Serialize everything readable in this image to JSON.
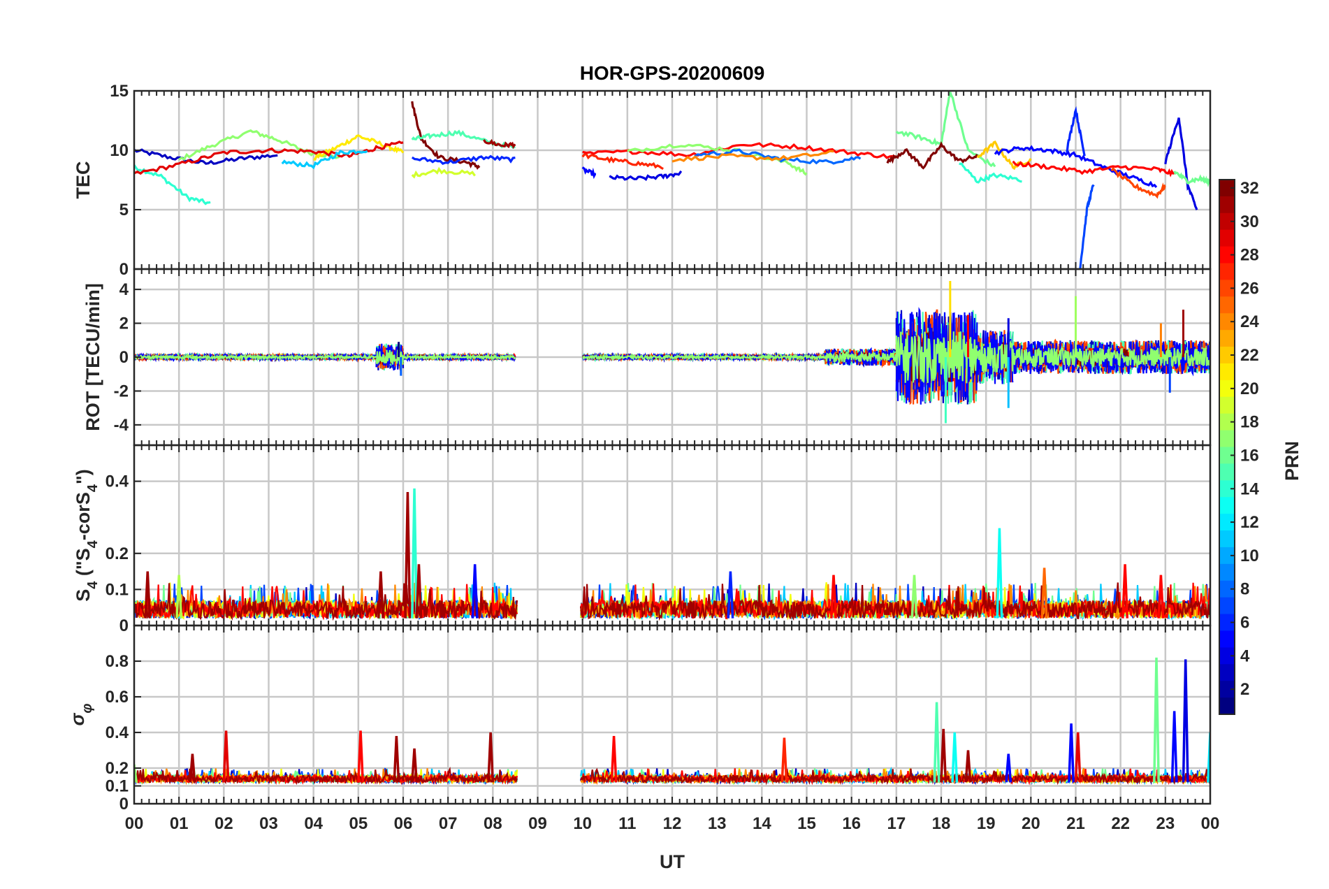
{
  "chart_data": {
    "type": "line",
    "title": "HOR-GPS-20200609",
    "xlabel": "UT",
    "x_ticks": [
      "00",
      "01",
      "02",
      "03",
      "04",
      "05",
      "06",
      "07",
      "08",
      "09",
      "10",
      "11",
      "12",
      "13",
      "14",
      "15",
      "16",
      "17",
      "18",
      "19",
      "20",
      "21",
      "22",
      "23",
      "00"
    ],
    "xlim": [
      0,
      24
    ],
    "data_gap_hours": [
      8.55,
      9.95
    ],
    "colorbar": {
      "label": "PRN",
      "ticks": [
        "2",
        "4",
        "6",
        "8",
        "10",
        "12",
        "14",
        "16",
        "18",
        "20",
        "22",
        "24",
        "26",
        "28",
        "30",
        "32"
      ],
      "range": [
        1,
        32
      ],
      "colormap": "jet"
    },
    "panels": [
      {
        "id": "tec",
        "ylabel": "TEC",
        "ylim": [
          0,
          15
        ],
        "y_ticks": [
          "0",
          "5",
          "10",
          "15"
        ],
        "y_values": [
          0,
          5,
          10,
          15
        ],
        "grid": true,
        "series": [
          {
            "prn": 3,
            "x": [
              0.0,
              0.8,
              1.6,
              2.4,
              3.2
            ],
            "y": [
              10.0,
              9.4,
              8.9,
              9.3,
              9.6
            ]
          },
          {
            "prn": 14,
            "x": [
              0.0,
              0.6,
              1.2,
              1.7
            ],
            "y": [
              8.6,
              7.8,
              6.0,
              5.5
            ]
          },
          {
            "prn": 17,
            "x": [
              1.0,
              1.8,
              2.6,
              3.2,
              3.9,
              4.6
            ],
            "y": [
              9.2,
              10.5,
              11.6,
              10.9,
              9.8,
              9.4
            ]
          },
          {
            "prn": 21,
            "x": [
              4.0,
              4.5,
              5.0,
              5.6,
              6.0
            ],
            "y": [
              9.3,
              10.2,
              11.2,
              10.4,
              9.8
            ]
          },
          {
            "prn": 29,
            "x": [
              0.0,
              1.0,
              2.0,
              3.0,
              4.0,
              4.8,
              5.4,
              6.0
            ],
            "y": [
              8.0,
              8.8,
              9.8,
              10.0,
              9.9,
              9.5,
              10.2,
              10.6
            ]
          },
          {
            "prn": 11,
            "x": [
              3.3,
              4.0,
              4.6,
              5.2
            ],
            "y": [
              9.0,
              8.7,
              9.8,
              10.0
            ]
          },
          {
            "prn": 32,
            "x": [
              6.2,
              6.4,
              6.8,
              7.4,
              7.7
            ],
            "y": [
              14.0,
              11.0,
              9.4,
              9.0,
              8.6
            ]
          },
          {
            "prn": 15,
            "x": [
              6.2,
              6.6,
              7.2,
              7.8,
              8.5
            ],
            "y": [
              10.9,
              11.2,
              11.5,
              10.8,
              10.2
            ]
          },
          {
            "prn": 19,
            "x": [
              6.2,
              6.8,
              7.6
            ],
            "y": [
              7.9,
              8.3,
              8.0
            ]
          },
          {
            "prn": 6,
            "x": [
              6.2,
              7.0,
              7.8,
              8.5
            ],
            "y": [
              9.3,
              9.0,
              9.4,
              9.2
            ]
          },
          {
            "prn": 31,
            "x": [
              7.8,
              8.2,
              8.5
            ],
            "y": [
              10.8,
              10.4,
              10.5
            ]
          },
          {
            "prn": 5,
            "x": [
              10.0,
              10.3
            ],
            "y": [
              8.4,
              7.9
            ]
          },
          {
            "prn": 4,
            "x": [
              10.6,
              11.2,
              11.8,
              12.2
            ],
            "y": [
              7.7,
              7.6,
              7.8,
              8.1
            ]
          },
          {
            "prn": 27,
            "x": [
              10.0,
              10.6,
              11.2,
              11.8
            ],
            "y": [
              9.6,
              9.2,
              8.9,
              8.6
            ]
          },
          {
            "prn": 28,
            "x": [
              10.0,
              11.2,
              12.4,
              13.6,
              14.8,
              16.0,
              17.0
            ],
            "y": [
              9.7,
              9.9,
              9.6,
              10.5,
              10.3,
              9.8,
              9.4
            ]
          },
          {
            "prn": 17,
            "x": [
              11.0,
              12.2,
              13.4,
              14.6,
              15.0
            ],
            "y": [
              9.9,
              10.5,
              10.0,
              8.9,
              8.0
            ]
          },
          {
            "prn": 8,
            "x": [
              12.5,
              13.5,
              14.5,
              15.5,
              16.2
            ],
            "y": [
              9.6,
              9.9,
              9.2,
              9.0,
              9.4
            ]
          },
          {
            "prn": 24,
            "x": [
              12.0,
              13.2,
              14.4,
              15.6
            ],
            "y": [
              9.2,
              9.5,
              9.3,
              9.8
            ]
          },
          {
            "prn": 16,
            "x": [
              17.0,
              17.6,
              18.0,
              18.2,
              18.6,
              19.2
            ],
            "y": [
              11.6,
              11.0,
              10.5,
              15.0,
              10.0,
              8.6
            ]
          },
          {
            "prn": 14,
            "x": [
              18.4,
              18.8,
              19.2,
              19.8
            ],
            "y": [
              9.0,
              7.4,
              7.9,
              7.5
            ]
          },
          {
            "prn": 32,
            "x": [
              16.8,
              17.2,
              17.6,
              18.0,
              18.4,
              18.8
            ],
            "y": [
              9.0,
              10.0,
              8.6,
              10.4,
              9.1,
              9.5
            ]
          },
          {
            "prn": 22,
            "x": [
              18.8,
              19.2,
              19.6,
              20.0
            ],
            "y": [
              9.4,
              10.6,
              8.6,
              9.2
            ]
          },
          {
            "prn": 5,
            "x": [
              19.2,
              19.8,
              20.4,
              21.0,
              21.6,
              22.2,
              22.8
            ],
            "y": [
              9.8,
              10.2,
              10.0,
              9.6,
              8.6,
              7.8,
              7.0
            ]
          },
          {
            "prn": 6,
            "x": [
              20.8,
              21.0,
              21.2
            ],
            "y": [
              10.0,
              13.4,
              9.5
            ]
          },
          {
            "prn": 7,
            "x": [
              21.1,
              21.25,
              21.4
            ],
            "y": [
              0.2,
              5.0,
              7.2
            ]
          },
          {
            "prn": 26,
            "x": [
              21.8,
              22.3,
              22.8,
              23.0
            ],
            "y": [
              8.4,
              7.0,
              6.2,
              7.0
            ]
          },
          {
            "prn": 28,
            "x": [
              19.6,
              20.4,
              21.2,
              22.0,
              22.8,
              23.2
            ],
            "y": [
              8.9,
              8.6,
              8.2,
              8.6,
              8.4,
              8.0
            ]
          },
          {
            "prn": 4,
            "x": [
              23.0,
              23.3,
              23.5,
              23.7
            ],
            "y": [
              9.0,
              12.8,
              7.0,
              5.0
            ]
          },
          {
            "prn": 16,
            "x": [
              23.2,
              23.5,
              23.8,
              24.0
            ],
            "y": [
              8.2,
              7.4,
              7.6,
              7.3
            ]
          }
        ]
      },
      {
        "id": "rot",
        "ylabel": "ROT [TECU/min]",
        "ylim": [
          -5.2,
          5.2
        ],
        "y_ticks": [
          "-4",
          "-2",
          "0",
          "2",
          "4"
        ],
        "y_values": [
          -4,
          -2,
          0,
          2,
          4
        ],
        "grid": true,
        "segments": [
          {
            "t0": 0.0,
            "t1": 5.4,
            "amp": 0.15
          },
          {
            "t0": 5.4,
            "t1": 6.0,
            "amp": 0.8
          },
          {
            "t0": 6.0,
            "t1": 8.5,
            "amp": 0.15
          },
          {
            "t0": 10.0,
            "t1": 15.4,
            "amp": 0.15
          },
          {
            "t0": 15.4,
            "t1": 17.0,
            "amp": 0.5
          },
          {
            "t0": 17.0,
            "t1": 18.8,
            "amp": 2.8
          },
          {
            "t0": 18.8,
            "t1": 19.6,
            "amp": 1.6
          },
          {
            "t0": 19.6,
            "t1": 24.0,
            "amp": 1.0
          }
        ],
        "peaks": [
          {
            "x": 5.9,
            "y": 0.9
          },
          {
            "x": 5.95,
            "y": -1.1
          },
          {
            "x": 18.1,
            "y": -3.9
          },
          {
            "x": 18.2,
            "y": 4.5
          },
          {
            "x": 18.6,
            "y": 2.5
          },
          {
            "x": 19.5,
            "y": 2.3
          },
          {
            "x": 19.5,
            "y": -3.0
          },
          {
            "x": 21.0,
            "y": 3.6
          },
          {
            "x": 22.9,
            "y": 2.0
          },
          {
            "x": 23.4,
            "y": 2.8
          },
          {
            "x": 23.1,
            "y": -2.1
          }
        ]
      },
      {
        "id": "s4",
        "ylabel": "S4 (\"S4-corS4\")",
        "ylim": [
          0,
          0.5
        ],
        "y_ticks": [
          "0",
          "0.1",
          "0.2",
          "0.4"
        ],
        "y_values": [
          0,
          0.1,
          0.2,
          0.4
        ],
        "grid": true,
        "peaks": [
          {
            "x": 0.3,
            "y": 0.15,
            "prn": 31
          },
          {
            "x": 1.0,
            "y": 0.14,
            "prn": 18
          },
          {
            "x": 5.5,
            "y": 0.15,
            "prn": 31
          },
          {
            "x": 6.1,
            "y": 0.37,
            "prn": 31
          },
          {
            "x": 6.25,
            "y": 0.38,
            "prn": 14
          },
          {
            "x": 6.35,
            "y": 0.17,
            "prn": 31
          },
          {
            "x": 7.6,
            "y": 0.17,
            "prn": 5
          },
          {
            "x": 13.3,
            "y": 0.15,
            "prn": 6
          },
          {
            "x": 15.6,
            "y": 0.14,
            "prn": 28
          },
          {
            "x": 17.4,
            "y": 0.14,
            "prn": 17
          },
          {
            "x": 19.3,
            "y": 0.27,
            "prn": 13
          },
          {
            "x": 20.3,
            "y": 0.16,
            "prn": 25
          },
          {
            "x": 22.1,
            "y": 0.17,
            "prn": 28
          },
          {
            "x": 22.9,
            "y": 0.14,
            "prn": 28
          }
        ]
      },
      {
        "id": "sigma",
        "ylabel": "σφ",
        "ylim": [
          0,
          1.0
        ],
        "y_ticks": [
          "0",
          "0.1",
          "0.2",
          "0.4",
          "0.6",
          "0.8"
        ],
        "y_values": [
          0,
          0.1,
          0.2,
          0.4,
          0.6,
          0.8
        ],
        "grid": true,
        "peaks": [
          {
            "x": 0.0,
            "y": 0.22,
            "prn": 17
          },
          {
            "x": 1.3,
            "y": 0.28,
            "prn": 31
          },
          {
            "x": 2.05,
            "y": 0.41,
            "prn": 29
          },
          {
            "x": 5.05,
            "y": 0.41,
            "prn": 28
          },
          {
            "x": 5.85,
            "y": 0.38,
            "prn": 31
          },
          {
            "x": 6.25,
            "y": 0.31,
            "prn": 31
          },
          {
            "x": 7.95,
            "y": 0.4,
            "prn": 31
          },
          {
            "x": 10.7,
            "y": 0.38,
            "prn": 28
          },
          {
            "x": 14.5,
            "y": 0.37,
            "prn": 27
          },
          {
            "x": 17.9,
            "y": 0.57,
            "prn": 15
          },
          {
            "x": 18.05,
            "y": 0.42,
            "prn": 31
          },
          {
            "x": 18.3,
            "y": 0.4,
            "prn": 13
          },
          {
            "x": 18.6,
            "y": 0.3,
            "prn": 31
          },
          {
            "x": 19.5,
            "y": 0.28,
            "prn": 5
          },
          {
            "x": 20.9,
            "y": 0.45,
            "prn": 5
          },
          {
            "x": 21.05,
            "y": 0.4,
            "prn": 29
          },
          {
            "x": 22.8,
            "y": 0.82,
            "prn": 16
          },
          {
            "x": 23.2,
            "y": 0.52,
            "prn": 5
          },
          {
            "x": 23.45,
            "y": 0.81,
            "prn": 4
          },
          {
            "x": 24.0,
            "y": 0.4,
            "prn": 12
          }
        ]
      }
    ]
  }
}
